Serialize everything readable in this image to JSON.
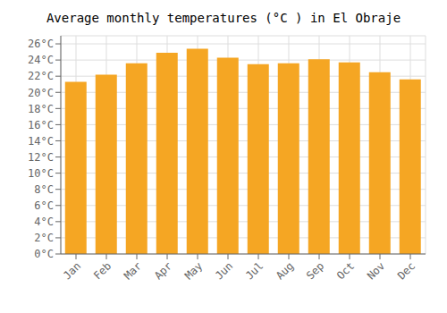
{
  "chart_data": {
    "type": "bar",
    "title": "Average monthly temperatures (°C ) in El Obraje",
    "categories": [
      "Jan",
      "Feb",
      "Mar",
      "Apr",
      "May",
      "Jun",
      "Jul",
      "Aug",
      "Sep",
      "Oct",
      "Nov",
      "Dec"
    ],
    "values": [
      21.3,
      22.2,
      23.6,
      24.9,
      25.4,
      24.3,
      23.5,
      23.6,
      24.1,
      23.7,
      22.5,
      21.6
    ],
    "color": "#F5A623",
    "ylim": [
      0,
      27
    ],
    "yticks": [
      {
        "value": 0,
        "label": "0°C"
      },
      {
        "value": 2,
        "label": "2°C"
      },
      {
        "value": 4,
        "label": "4°C"
      },
      {
        "value": 6,
        "label": "6°C"
      },
      {
        "value": 8,
        "label": "8°C"
      },
      {
        "value": 10,
        "label": "10°C"
      },
      {
        "value": 12,
        "label": "12°C"
      },
      {
        "value": 14,
        "label": "14°C"
      },
      {
        "value": 16,
        "label": "16°C"
      },
      {
        "value": 18,
        "label": "18°C"
      },
      {
        "value": 20,
        "label": "20°C"
      },
      {
        "value": 22,
        "label": "22°C"
      },
      {
        "value": 24,
        "label": "24°C"
      },
      {
        "value": 26,
        "label": "26°C"
      }
    ],
    "grid": true
  }
}
